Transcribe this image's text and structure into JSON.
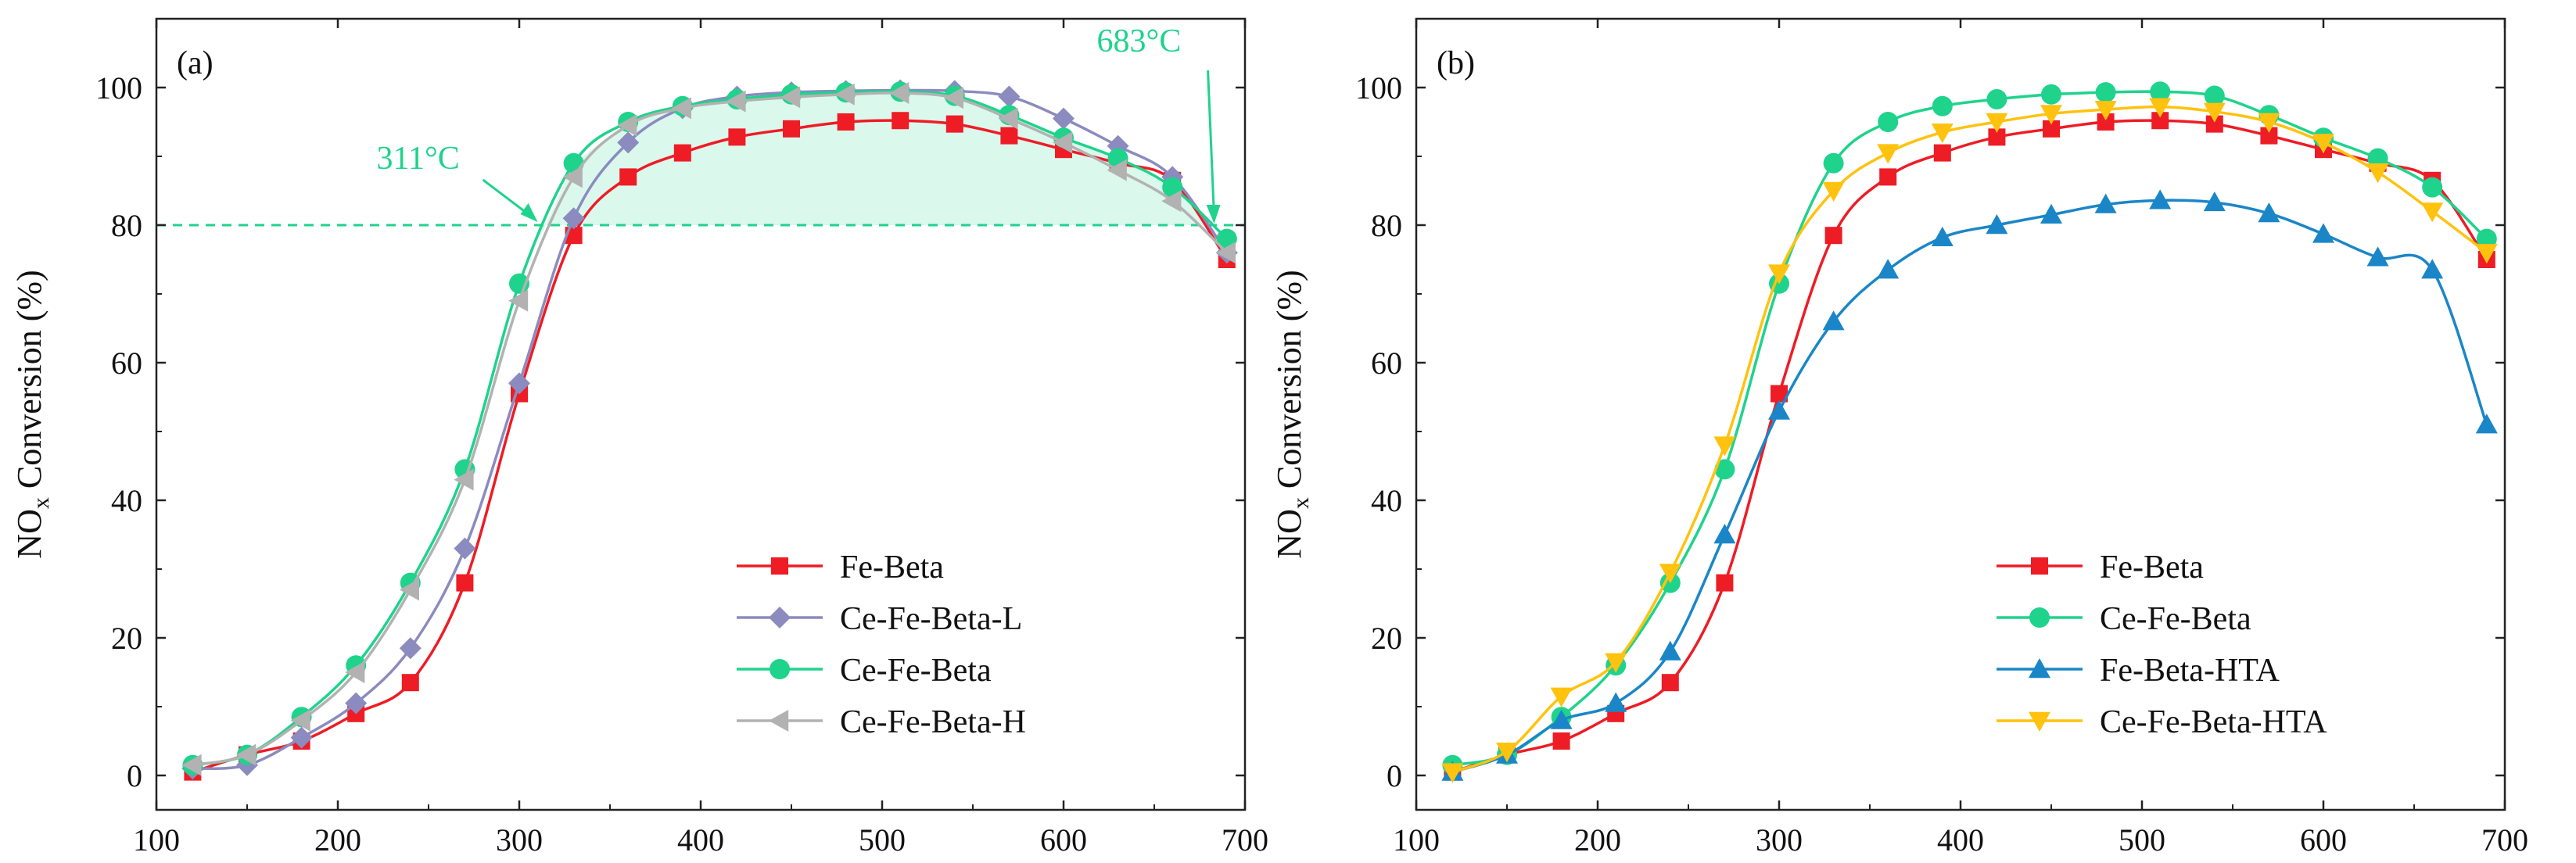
{
  "chart_data": [
    {
      "type": "line",
      "panel_label": "(a)",
      "title": "",
      "xlabel": "",
      "ylabel_main": "NO",
      "ylabel_sub": "x",
      "ylabel_rest": " Conversion (%)",
      "xlim": [
        100,
        700
      ],
      "ylim": [
        -5,
        110
      ],
      "xticks": [
        100,
        200,
        300,
        400,
        500,
        600,
        700
      ],
      "yticks": [
        0,
        20,
        40,
        60,
        80,
        100
      ],
      "legend_position": "bottom-center",
      "series": [
        {
          "name": "Fe-Beta",
          "color": "#ee1c25",
          "marker": "square",
          "x": [
            120,
            150,
            180,
            210,
            240,
            270,
            300,
            330,
            360,
            390,
            420,
            450,
            480,
            510,
            540,
            570,
            600,
            630,
            660,
            690
          ],
          "y": [
            0.5,
            3,
            5,
            9,
            13.5,
            28,
            55.5,
            78.5,
            87,
            90.5,
            92.8,
            94,
            95,
            95.2,
            94.7,
            93,
            91,
            89,
            86.5,
            75
          ]
        },
        {
          "name": "Ce-Fe-Beta-L",
          "color": "#8b8bbf",
          "marker": "diamond",
          "x": [
            120,
            150,
            180,
            210,
            240,
            270,
            300,
            330,
            360,
            390,
            420,
            450,
            480,
            510,
            540,
            570,
            600,
            630,
            660,
            690
          ],
          "y": [
            1,
            1.5,
            5.5,
            10.5,
            18.5,
            33,
            57,
            81,
            92,
            97,
            98.7,
            99.3,
            99.5,
            99.6,
            99.5,
            98.7,
            95.5,
            91.5,
            87,
            76
          ]
        },
        {
          "name": "Ce-Fe-Beta",
          "color": "#1fd38c",
          "marker": "circle",
          "x": [
            120,
            150,
            180,
            210,
            240,
            270,
            300,
            330,
            360,
            390,
            420,
            450,
            480,
            510,
            540,
            570,
            600,
            630,
            660,
            690
          ],
          "y": [
            1.5,
            3,
            8.5,
            16,
            28,
            44.5,
            71.5,
            89,
            95,
            97.3,
            98.3,
            99,
            99.3,
            99.4,
            98.8,
            96,
            92.7,
            89.7,
            85.5,
            78
          ]
        },
        {
          "name": "Ce-Fe-Beta-H",
          "color": "#b2b2b2",
          "marker": "triangle-left",
          "x": [
            120,
            150,
            180,
            210,
            240,
            270,
            300,
            330,
            360,
            390,
            420,
            450,
            480,
            510,
            540,
            570,
            600,
            630,
            660,
            690
          ],
          "y": [
            1.5,
            3,
            8,
            15,
            27,
            43,
            69,
            87,
            94.5,
            97,
            98,
            98.6,
            99,
            99.2,
            98.5,
            95.5,
            92,
            88,
            83.5,
            76
          ]
        }
      ],
      "threshold_y": 80,
      "annotations": [
        {
          "text": "311°C",
          "x": 311,
          "y": 80
        },
        {
          "text": "683°C",
          "x": 683,
          "y": 80
        }
      ],
      "annotation_color": "#1fd38c"
    },
    {
      "type": "line",
      "panel_label": "(b)",
      "title": "",
      "xlabel": "",
      "ylabel_main": "NO",
      "ylabel_sub": "x",
      "ylabel_rest": " Conversion (%)",
      "xlim": [
        100,
        700
      ],
      "ylim": [
        -5,
        110
      ],
      "xticks": [
        100,
        200,
        300,
        400,
        500,
        600,
        700
      ],
      "yticks": [
        0,
        20,
        40,
        60,
        80,
        100
      ],
      "legend_position": "bottom-center",
      "series": [
        {
          "name": "Fe-Beta",
          "color": "#ee1c25",
          "marker": "square",
          "x": [
            120,
            150,
            180,
            210,
            240,
            270,
            300,
            330,
            360,
            390,
            420,
            450,
            480,
            510,
            540,
            570,
            600,
            630,
            660,
            690
          ],
          "y": [
            0.5,
            3,
            5,
            9,
            13.5,
            28,
            55.5,
            78.5,
            87,
            90.5,
            92.8,
            94,
            95,
            95.2,
            94.7,
            93,
            91,
            89,
            86.5,
            75
          ]
        },
        {
          "name": "Ce-Fe-Beta",
          "color": "#1fd38c",
          "marker": "circle",
          "x": [
            120,
            150,
            180,
            210,
            240,
            270,
            300,
            330,
            360,
            390,
            420,
            450,
            480,
            510,
            540,
            570,
            600,
            630,
            660,
            690
          ],
          "y": [
            1.5,
            3,
            8.5,
            16,
            28,
            44.5,
            71.5,
            89,
            95,
            97.3,
            98.3,
            99,
            99.3,
            99.4,
            98.8,
            96,
            92.7,
            89.7,
            85.5,
            78
          ]
        },
        {
          "name": "Fe-Beta-HTA",
          "color": "#1a86c7",
          "marker": "triangle-up",
          "x": [
            120,
            150,
            180,
            210,
            240,
            270,
            300,
            330,
            360,
            390,
            420,
            450,
            480,
            510,
            540,
            570,
            600,
            630,
            660,
            690
          ],
          "y": [
            0.5,
            3,
            8,
            10.5,
            18,
            35,
            53,
            66,
            73.5,
            78.2,
            80,
            81.5,
            83,
            83.6,
            83.3,
            81.7,
            78.7,
            75.3,
            73.5,
            51
          ]
        },
        {
          "name": "Ce-Fe-Beta-HTA",
          "color": "#ffc20e",
          "marker": "triangle-down",
          "x": [
            120,
            150,
            180,
            210,
            240,
            270,
            300,
            330,
            360,
            390,
            420,
            450,
            480,
            510,
            540,
            570,
            600,
            630,
            660,
            690
          ],
          "y": [
            0.5,
            3.5,
            11.5,
            16.5,
            29.5,
            48,
            73,
            85,
            90.5,
            93.5,
            95,
            96.2,
            96.8,
            97.2,
            96.5,
            95,
            92,
            87.7,
            82,
            76
          ]
        }
      ]
    }
  ]
}
